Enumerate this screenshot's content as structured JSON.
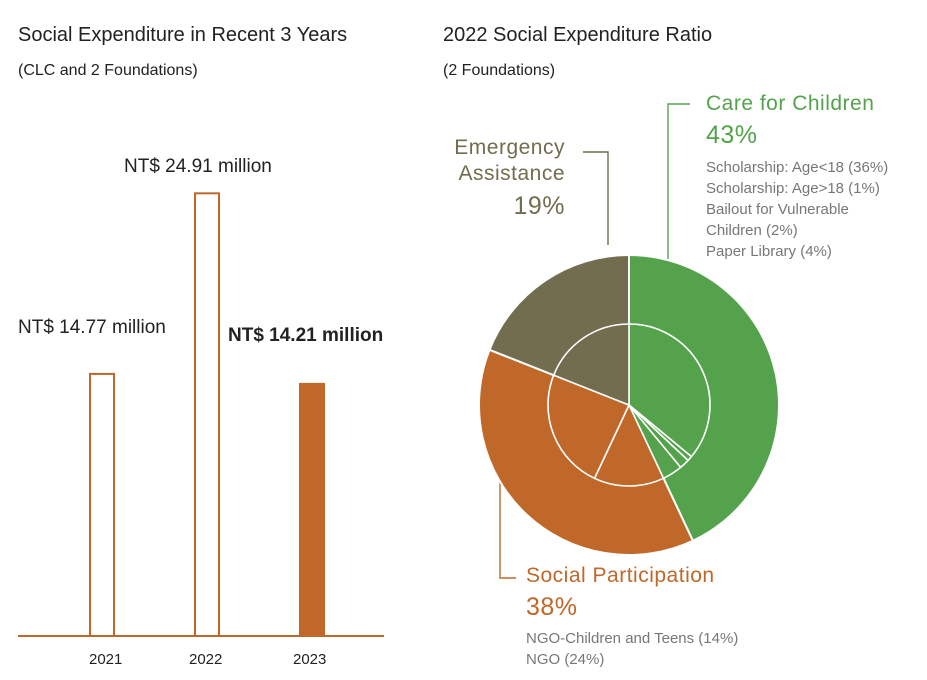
{
  "left_panel": {
    "title": "Social Expenditure in Recent 3 Years",
    "subtitle": "(CLC and 2 Foundations)"
  },
  "right_panel": {
    "title": "2022 Social Expenditure Ratio",
    "subtitle": "(2 Foundations)"
  },
  "colors": {
    "bar_accent": "#c0682a",
    "care": "#54a24b",
    "social": "#c0682a",
    "emergency": "#726d4e"
  },
  "chart_data": [
    {
      "type": "bar",
      "categories": [
        "2021",
        "2022",
        "2023"
      ],
      "values": [
        14.77,
        24.91,
        14.21
      ],
      "data_labels": [
        "NT$ 14.77 million",
        "NT$ 24.91 million",
        "NT$ 14.21 million"
      ],
      "filled": [
        false,
        false,
        true
      ],
      "title": "Social Expenditure in Recent 3 Years",
      "subtitle": "(CLC and 2 Foundations)",
      "xlabel": "",
      "ylabel": "",
      "ylim": [
        0,
        26.5
      ]
    },
    {
      "type": "pie",
      "title": "2022 Social Expenditure Ratio",
      "subtitle": "(2 Foundations)",
      "outer": [
        {
          "name": "Care for Children",
          "value": 43,
          "label": "43%"
        },
        {
          "name": "Social Participation",
          "value": 38,
          "label": "38%"
        },
        {
          "name": "Emergency Assistance",
          "value": 19,
          "label": "19%"
        }
      ],
      "inner": [
        {
          "group": "Care for Children",
          "name": "Scholarship: Age<18 (36%)",
          "value": 36
        },
        {
          "group": "Care for Children",
          "name": "Scholarship: Age>18 (1%)",
          "value": 1
        },
        {
          "group": "Care for Children",
          "name": "Bailout for Vulnerable Children (2%)",
          "value": 2
        },
        {
          "group": "Care for Children",
          "name": "Paper Library (4%)",
          "value": 4
        },
        {
          "group": "Social Participation",
          "name": "NGO-Children and Teens (14%)",
          "value": 14
        },
        {
          "group": "Social Participation",
          "name": "NGO (24%)",
          "value": 24
        },
        {
          "group": "Emergency Assistance",
          "name": "Emergency Assistance",
          "value": 19
        }
      ],
      "care_items": [
        "Scholarship: Age<18 (36%)",
        "Scholarship: Age>18 (1%)",
        "Bailout for Vulnerable",
        "Children (2%)",
        "Paper Library (4%)"
      ],
      "social_items": [
        "NGO-Children and Teens (14%)",
        "NGO (24%)"
      ],
      "emergency_label": [
        "Emergency",
        "Assistance"
      ]
    }
  ]
}
